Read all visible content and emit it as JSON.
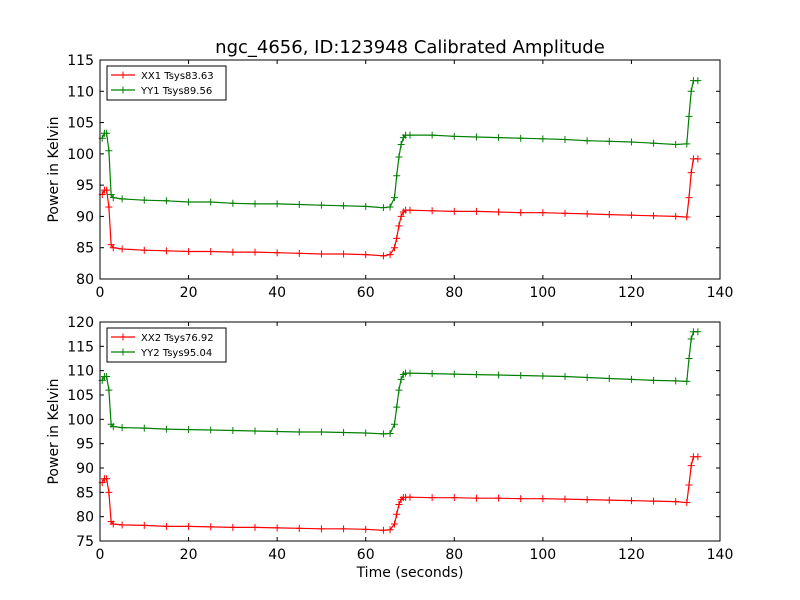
{
  "title": "ngc_4656, ID:123948 Calibrated Amplitude",
  "colors": {
    "xx": "#ff0000",
    "yy": "#008000"
  },
  "chart_data": [
    {
      "type": "line",
      "xlabel": "",
      "ylabel": "Power in Kelvin",
      "xlim": [
        0,
        140
      ],
      "ylim": [
        80,
        115
      ],
      "xticks": [
        0,
        20,
        40,
        60,
        80,
        100,
        120,
        140
      ],
      "yticks": [
        80,
        85,
        90,
        95,
        100,
        105,
        110,
        115
      ],
      "grid": false,
      "legend": "top-left",
      "series": [
        {
          "name": "XX1 Tsys83.63",
          "color": "#ff0000",
          "x": [
            0.5,
            1.0,
            1.5,
            2.0,
            2.5,
            3.0,
            5,
            10,
            15,
            20,
            25,
            30,
            35,
            40,
            45,
            50,
            55,
            60,
            64,
            65.5,
            66.5,
            67.0,
            67.5,
            68.0,
            68.5,
            69.0,
            70,
            75,
            80,
            85,
            90,
            95,
            100,
            105,
            110,
            115,
            120,
            125,
            130,
            132.5,
            133.0,
            133.5,
            134.0,
            135.0
          ],
          "y": [
            93.5,
            94.2,
            94.2,
            91.5,
            85.5,
            85.0,
            84.8,
            84.6,
            84.5,
            84.4,
            84.4,
            84.3,
            84.3,
            84.2,
            84.1,
            84.0,
            84.0,
            83.9,
            83.7,
            83.9,
            85.0,
            86.5,
            88.5,
            90.0,
            90.7,
            91.0,
            91.0,
            90.9,
            90.8,
            90.8,
            90.7,
            90.6,
            90.6,
            90.5,
            90.4,
            90.3,
            90.2,
            90.1,
            90.0,
            89.9,
            93.0,
            97.0,
            99.2,
            99.2
          ]
        },
        {
          "name": "YY1 Tsys89.56",
          "color": "#008000",
          "x": [
            0.5,
            1.0,
            1.5,
            2.0,
            2.5,
            3.0,
            5,
            10,
            15,
            20,
            25,
            30,
            35,
            40,
            45,
            50,
            55,
            60,
            64,
            65.5,
            66.5,
            67.0,
            67.5,
            68.0,
            68.5,
            69.0,
            70,
            75,
            80,
            85,
            90,
            95,
            100,
            105,
            110,
            115,
            120,
            125,
            130,
            132.5,
            133.0,
            133.5,
            134.0,
            135.0
          ],
          "y": [
            102.5,
            103.3,
            103.3,
            100.5,
            93.5,
            93.0,
            92.8,
            92.6,
            92.5,
            92.3,
            92.3,
            92.1,
            92.0,
            92.0,
            91.9,
            91.8,
            91.7,
            91.6,
            91.4,
            91.5,
            93.0,
            96.5,
            99.5,
            101.5,
            102.6,
            103.0,
            103.0,
            103.0,
            102.8,
            102.7,
            102.6,
            102.5,
            102.4,
            102.3,
            102.1,
            102.0,
            101.9,
            101.7,
            101.5,
            101.6,
            106.0,
            110.0,
            111.7,
            111.7
          ]
        }
      ]
    },
    {
      "type": "line",
      "xlabel": "Time (seconds)",
      "ylabel": "Power in Kelvin",
      "xlim": [
        0,
        140
      ],
      "ylim": [
        75,
        120
      ],
      "xticks": [
        0,
        20,
        40,
        60,
        80,
        100,
        120,
        140
      ],
      "yticks": [
        75,
        80,
        85,
        90,
        95,
        100,
        105,
        110,
        115,
        120
      ],
      "grid": false,
      "legend": "top-left",
      "series": [
        {
          "name": "XX2 Tsys76.92",
          "color": "#ff0000",
          "x": [
            0.5,
            1.0,
            1.5,
            2.0,
            2.5,
            3.0,
            5,
            10,
            15,
            20,
            25,
            30,
            35,
            40,
            45,
            50,
            55,
            60,
            64,
            65.5,
            66.5,
            67.0,
            67.5,
            68.0,
            68.5,
            69.0,
            70,
            75,
            80,
            85,
            90,
            95,
            100,
            105,
            110,
            115,
            120,
            125,
            130,
            132.5,
            133.0,
            133.5,
            134.0,
            135.0
          ],
          "y": [
            87.0,
            87.8,
            87.8,
            85.0,
            79.0,
            78.5,
            78.3,
            78.2,
            78.0,
            78.0,
            77.9,
            77.8,
            77.8,
            77.7,
            77.6,
            77.5,
            77.5,
            77.4,
            77.2,
            77.3,
            78.5,
            80.5,
            82.5,
            83.5,
            83.9,
            84.0,
            84.0,
            83.9,
            83.9,
            83.8,
            83.8,
            83.7,
            83.7,
            83.6,
            83.5,
            83.4,
            83.3,
            83.2,
            83.1,
            82.9,
            86.5,
            90.5,
            92.3,
            92.3
          ]
        },
        {
          "name": "YY2 Tsys95.04",
          "color": "#008000",
          "x": [
            0.5,
            1.0,
            1.5,
            2.0,
            2.5,
            3.0,
            5,
            10,
            15,
            20,
            25,
            30,
            35,
            40,
            45,
            50,
            55,
            60,
            64,
            65.5,
            66.5,
            67.0,
            67.5,
            68.0,
            68.5,
            69.0,
            70,
            75,
            80,
            85,
            90,
            95,
            100,
            105,
            110,
            115,
            120,
            125,
            130,
            132.5,
            133.0,
            133.5,
            134.0,
            135.0
          ],
          "y": [
            108.0,
            108.8,
            108.8,
            106.0,
            99.0,
            98.5,
            98.3,
            98.2,
            98.0,
            97.9,
            97.8,
            97.7,
            97.6,
            97.5,
            97.4,
            97.4,
            97.3,
            97.2,
            97.0,
            97.1,
            99.0,
            102.5,
            106.0,
            108.2,
            109.2,
            109.5,
            109.5,
            109.4,
            109.3,
            109.2,
            109.1,
            109.0,
            108.9,
            108.8,
            108.6,
            108.4,
            108.2,
            108.0,
            107.9,
            107.8,
            112.5,
            116.5,
            118.0,
            118.0
          ]
        }
      ]
    }
  ]
}
